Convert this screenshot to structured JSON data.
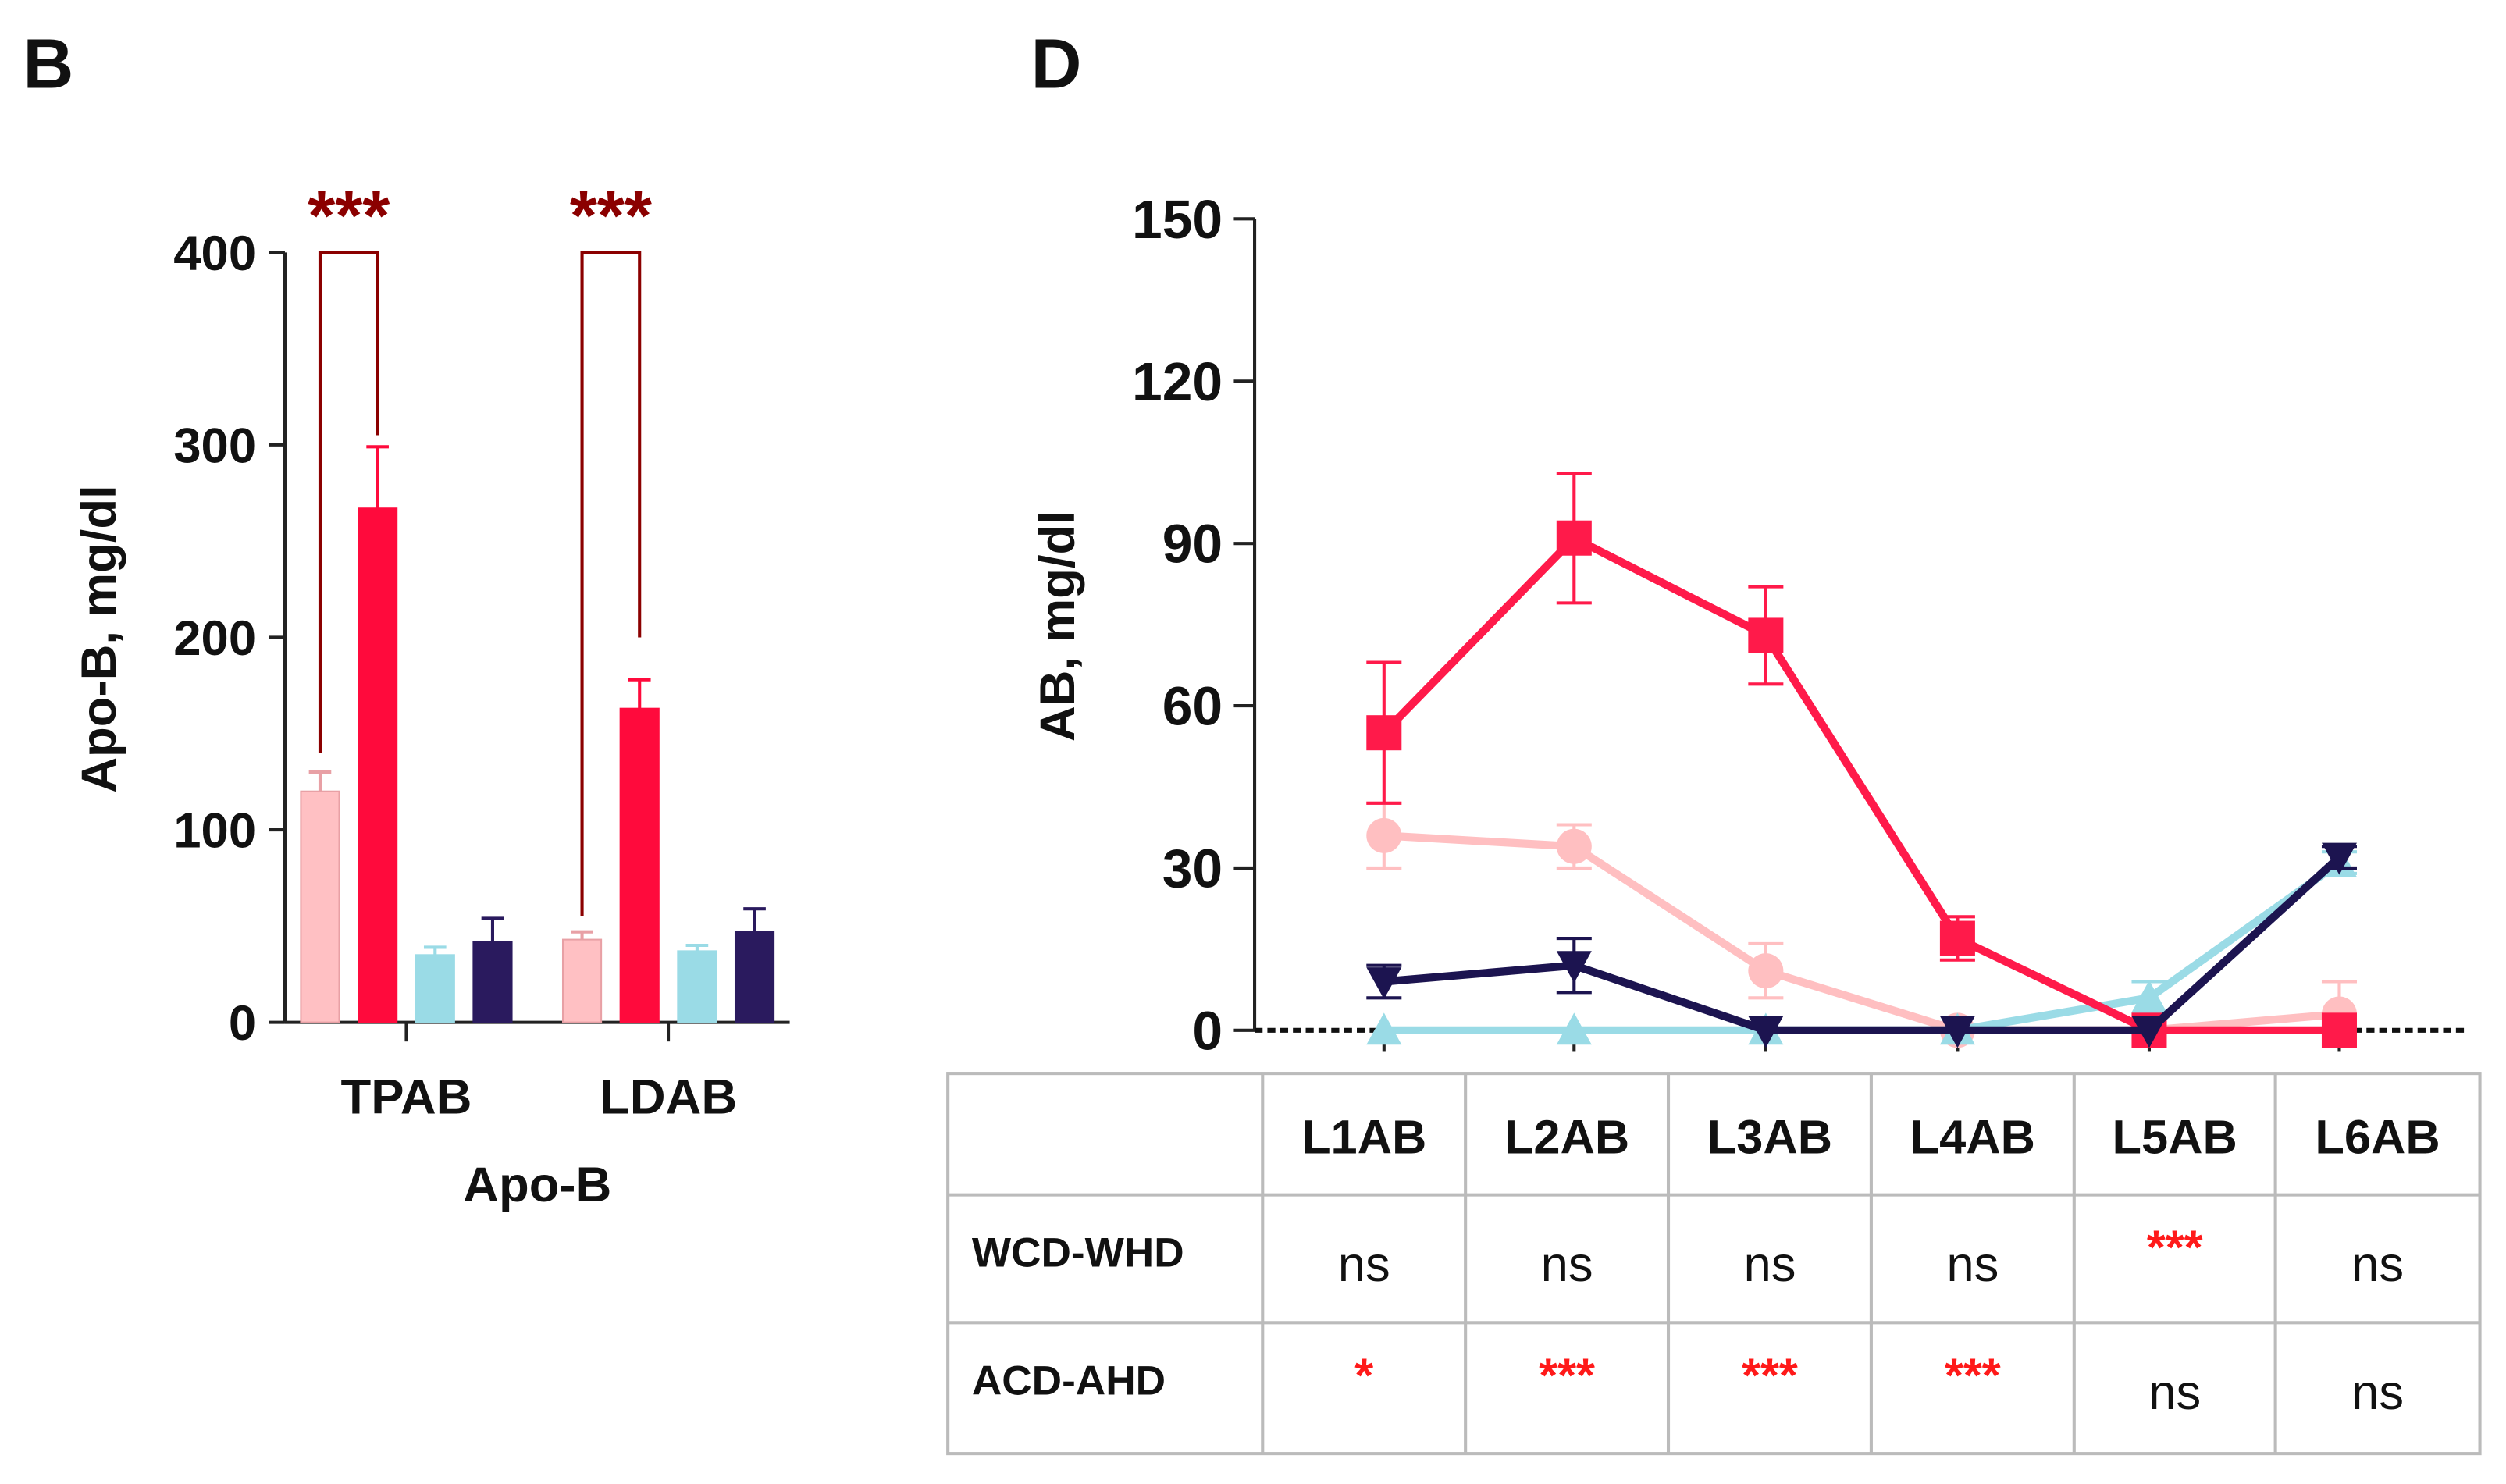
{
  "panels": {
    "left": "B",
    "right": "D"
  },
  "chart_data": [
    {
      "type": "bar",
      "title": "",
      "xlabel": "Apo-B",
      "ylabel": "Apo-B, mg/dl",
      "ylim": [
        0,
        400
      ],
      "yticks": [
        "0",
        "100",
        "200",
        "300",
        "400"
      ],
      "categories": [
        "TPAB",
        "LDAB"
      ],
      "series": [
        {
          "color": "#ffc0c3",
          "values": [
            120,
            43
          ],
          "errors": [
            10,
            4
          ]
        },
        {
          "color": "#ff0a3c",
          "values": [
            267,
            163
          ],
          "errors": [
            32,
            15
          ]
        },
        {
          "color": "#9adbe6",
          "values": [
            35,
            37
          ],
          "errors": [
            4,
            3
          ]
        },
        {
          "color": "#2a1a5e",
          "values": [
            42,
            47
          ],
          "errors": [
            12,
            12
          ]
        }
      ],
      "significance": [
        {
          "category": "TPAB",
          "between": [
            0,
            1
          ],
          "label": "***",
          "legs": [
            140,
            305
          ]
        },
        {
          "category": "LDAB",
          "between": [
            0,
            1
          ],
          "label": "***",
          "legs": [
            55,
            200
          ]
        }
      ],
      "significance_color": "#8b0000"
    },
    {
      "type": "line",
      "ylabel": "AB, mg/dl",
      "ylim": [
        0,
        150
      ],
      "yticks": [
        "0",
        "30",
        "60",
        "90",
        "120",
        "150"
      ],
      "categories": [
        "L1AB",
        "L2AB",
        "L3AB",
        "L4AB",
        "L5AB",
        "L6AB"
      ],
      "series": [
        {
          "color": "#ffbfc1",
          "marker": "circle",
          "values": [
            36,
            34,
            11,
            0,
            0,
            3
          ],
          "errors": [
            6,
            4,
            5,
            0,
            0,
            6
          ]
        },
        {
          "color": "#9adbe6",
          "marker": "triangle-up",
          "values": [
            0,
            0,
            0,
            0,
            6,
            31
          ],
          "errors": [
            0,
            0,
            0,
            0,
            3,
            2
          ]
        },
        {
          "color": "#ff1a4a",
          "marker": "square",
          "values": [
            55,
            91,
            73,
            17,
            0,
            0
          ],
          "errors": [
            13,
            12,
            9,
            4,
            0,
            0
          ]
        },
        {
          "color": "#1c1450",
          "marker": "triangle-down",
          "values": [
            9,
            12,
            0,
            0,
            0,
            32
          ],
          "errors": [
            3,
            5,
            0,
            0,
            0,
            2
          ]
        }
      ]
    }
  ],
  "table": {
    "headers": [
      "L1AB",
      "L2AB",
      "L3AB",
      "L4AB",
      "L5AB",
      "L6AB"
    ],
    "rows": [
      {
        "label": "WCD-WHD",
        "cells": [
          "ns",
          "ns",
          "ns",
          "ns",
          "***",
          "ns"
        ]
      },
      {
        "label": "ACD-AHD",
        "cells": [
          "*",
          "***",
          "***",
          "***",
          "ns",
          "ns"
        ]
      }
    ]
  }
}
